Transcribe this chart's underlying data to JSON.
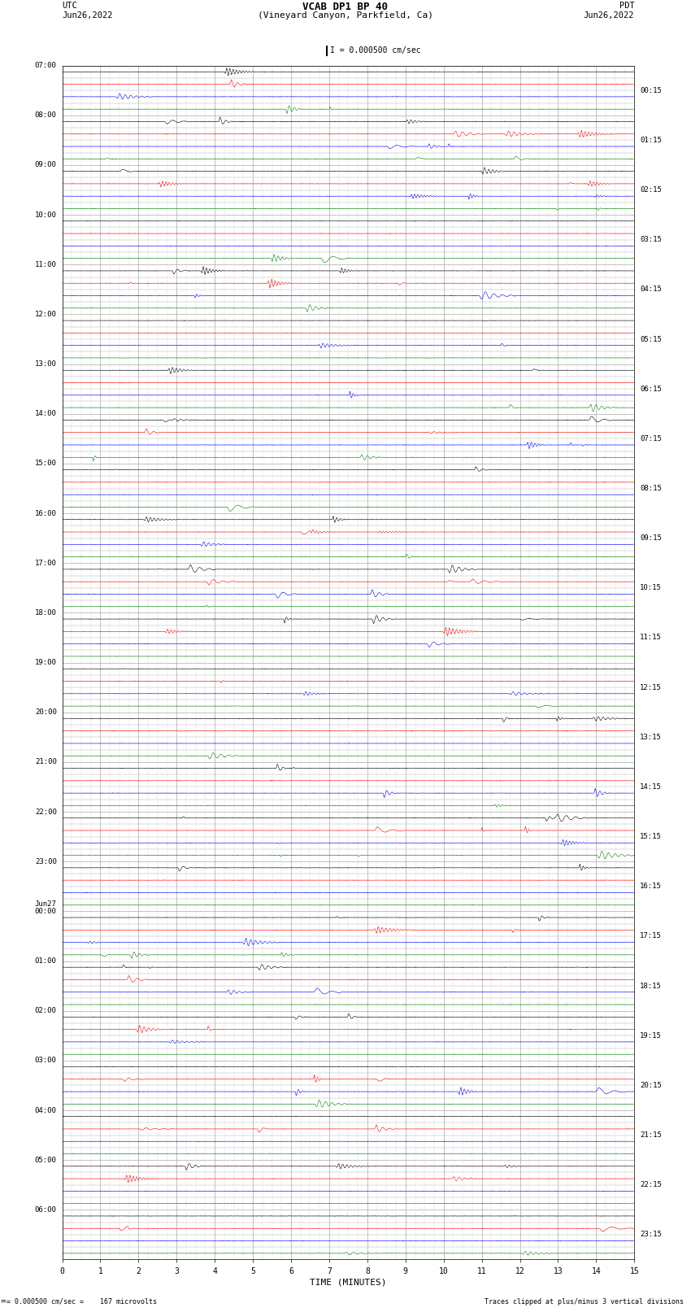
{
  "title_line1": "VCAB DP1 BP 40",
  "title_line2": "(Vineyard Canyon, Parkfield, Ca)",
  "scale_label": "I = 0.000500 cm/sec",
  "left_label_top": "UTC",
  "left_label_date": "Jun26,2022",
  "right_label_top": "PDT",
  "right_label_date": "Jun26,2022",
  "bottom_label": "TIME (MINUTES)",
  "bottom_note_left": "= 0.000500 cm/sec =    167 microvolts",
  "bottom_note_right": "Traces clipped at plus/minus 3 vertical divisions",
  "xlabel_ticks": [
    0,
    1,
    2,
    3,
    4,
    5,
    6,
    7,
    8,
    9,
    10,
    11,
    12,
    13,
    14,
    15
  ],
  "left_time_labels": [
    "07:00",
    "08:00",
    "09:00",
    "10:00",
    "11:00",
    "12:00",
    "13:00",
    "14:00",
    "15:00",
    "16:00",
    "17:00",
    "18:00",
    "19:00",
    "20:00",
    "21:00",
    "22:00",
    "23:00",
    "Jun27\n00:00",
    "01:00",
    "02:00",
    "03:00",
    "04:00",
    "05:00",
    "06:00"
  ],
  "right_time_labels": [
    "00:15",
    "01:15",
    "02:15",
    "03:15",
    "04:15",
    "05:15",
    "06:15",
    "07:15",
    "08:15",
    "09:15",
    "10:15",
    "11:15",
    "12:15",
    "13:15",
    "14:15",
    "15:15",
    "16:15",
    "17:15",
    "18:15",
    "19:15",
    "20:15",
    "21:15",
    "22:15",
    "23:15"
  ],
  "trace_colors": [
    "black",
    "red",
    "blue",
    "green"
  ],
  "n_rows": 24,
  "n_channels": 4,
  "n_minutes": 15,
  "background_color": "white",
  "grid_major_color": "#aaaaaa",
  "grid_minor_color": "#dddddd",
  "fig_width": 8.5,
  "fig_height": 16.13
}
